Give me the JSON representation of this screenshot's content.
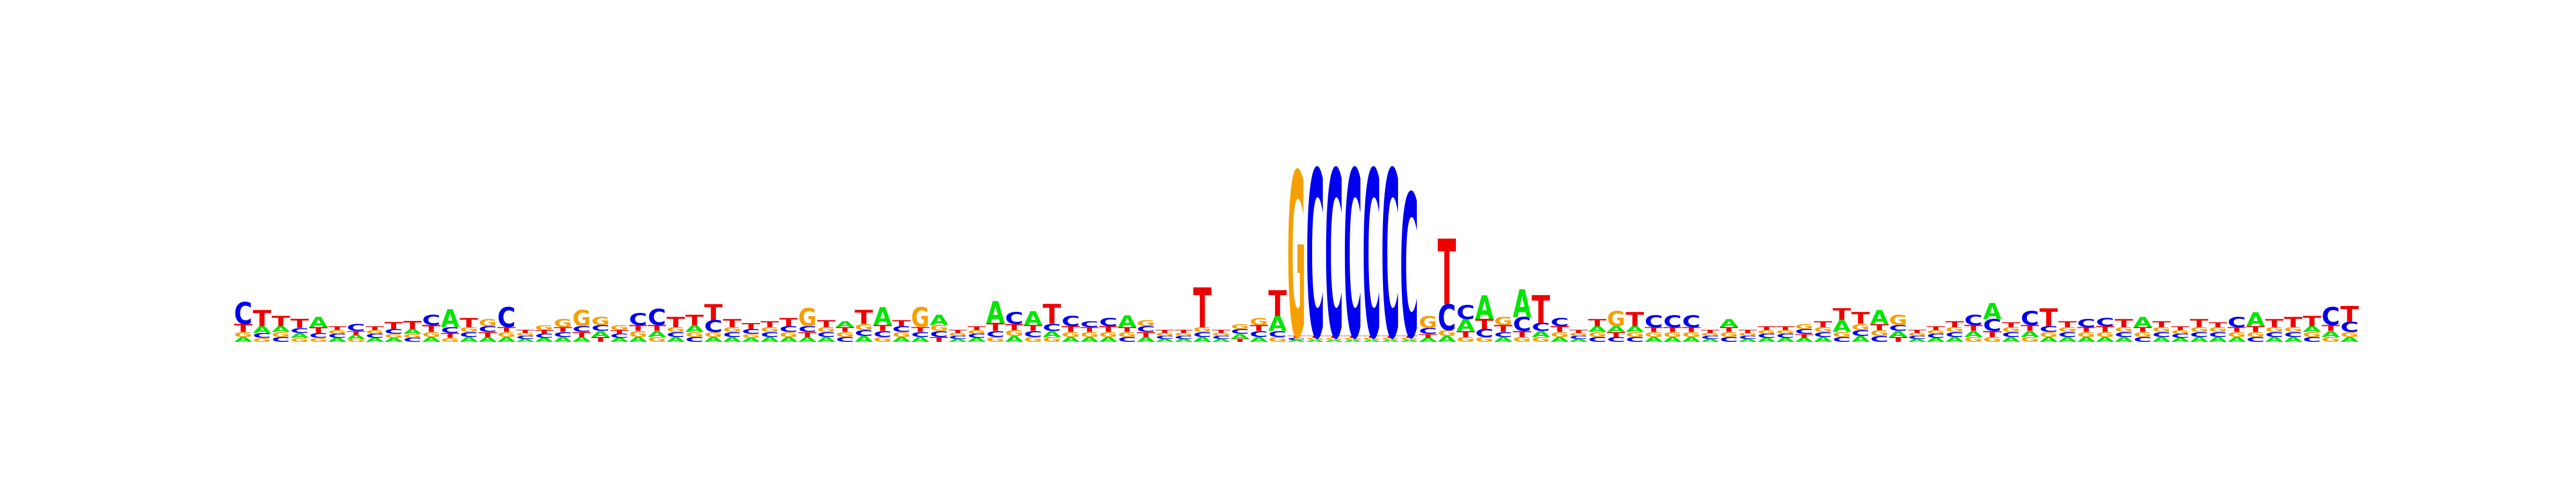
{
  "chart_data": {
    "type": "sequence-logo",
    "alphabet": [
      "A",
      "C",
      "G",
      "T"
    ],
    "colors": {
      "A": "#00e600",
      "C": "#0000ee",
      "G": "#f5a000",
      "T": "#ee0000"
    },
    "ylim": [
      0,
      2
    ],
    "positions": [
      {
        "A": 0.05,
        "C": 0.22,
        "G": 0.05,
        "T": 0.08
      },
      {
        "A": 0.07,
        "C": 0.05,
        "G": 0.04,
        "T": 0.16
      },
      {
        "A": 0.06,
        "C": 0.05,
        "G": 0.05,
        "T": 0.1
      },
      {
        "A": 0.05,
        "C": 0.05,
        "G": 0.04,
        "T": 0.09
      },
      {
        "A": 0.1,
        "C": 0.05,
        "G": 0.04,
        "T": 0.06
      },
      {
        "A": 0.04,
        "C": 0.04,
        "G": 0.04,
        "T": 0.04
      },
      {
        "A": 0.04,
        "C": 0.07,
        "G": 0.03,
        "T": 0.04
      },
      {
        "A": 0.04,
        "C": 0.04,
        "G": 0.04,
        "T": 0.04
      },
      {
        "A": 0.04,
        "C": 0.05,
        "G": 0.04,
        "T": 0.07
      },
      {
        "A": 0.05,
        "C": 0.04,
        "G": 0.04,
        "T": 0.08
      },
      {
        "A": 0.05,
        "C": 0.1,
        "G": 0.05,
        "T": 0.07
      },
      {
        "A": 0.18,
        "C": 0.06,
        "G": 0.04,
        "T": 0.05
      },
      {
        "A": 0.05,
        "C": 0.05,
        "G": 0.05,
        "T": 0.09
      },
      {
        "A": 0.05,
        "C": 0.06,
        "G": 0.07,
        "T": 0.05
      },
      {
        "A": 0.05,
        "C": 0.2,
        "G": 0.05,
        "T": 0.05
      },
      {
        "A": 0.03,
        "C": 0.03,
        "G": 0.03,
        "T": 0.03
      },
      {
        "A": 0.04,
        "C": 0.04,
        "G": 0.05,
        "T": 0.04
      },
      {
        "A": 0.05,
        "C": 0.05,
        "G": 0.08,
        "T": 0.05
      },
      {
        "A": 0.05,
        "C": 0.06,
        "G": 0.16,
        "T": 0.05
      },
      {
        "A": 0.06,
        "C": 0.06,
        "G": 0.08,
        "T": 0.05
      },
      {
        "A": 0.04,
        "C": 0.04,
        "G": 0.05,
        "T": 0.04
      },
      {
        "A": 0.05,
        "C": 0.12,
        "G": 0.06,
        "T": 0.06
      },
      {
        "A": 0.06,
        "C": 0.16,
        "G": 0.05,
        "T": 0.06
      },
      {
        "A": 0.05,
        "C": 0.05,
        "G": 0.05,
        "T": 0.1
      },
      {
        "A": 0.07,
        "C": 0.05,
        "G": 0.05,
        "T": 0.1
      },
      {
        "A": 0.05,
        "C": 0.12,
        "G": 0.05,
        "T": 0.16
      },
      {
        "A": 0.05,
        "C": 0.05,
        "G": 0.05,
        "T": 0.08
      },
      {
        "A": 0.04,
        "C": 0.05,
        "G": 0.04,
        "T": 0.06
      },
      {
        "A": 0.05,
        "C": 0.05,
        "G": 0.05,
        "T": 0.06
      },
      {
        "A": 0.05,
        "C": 0.06,
        "G": 0.05,
        "T": 0.08
      },
      {
        "A": 0.05,
        "C": 0.06,
        "G": 0.18,
        "T": 0.05
      },
      {
        "A": 0.05,
        "C": 0.05,
        "G": 0.05,
        "T": 0.07
      },
      {
        "A": 0.06,
        "C": 0.05,
        "G": 0.05,
        "T": 0.05
      },
      {
        "A": 0.06,
        "C": 0.06,
        "G": 0.06,
        "T": 0.14
      },
      {
        "A": 0.18,
        "C": 0.06,
        "G": 0.05,
        "T": 0.06
      },
      {
        "A": 0.05,
        "C": 0.06,
        "G": 0.05,
        "T": 0.06
      },
      {
        "A": 0.05,
        "C": 0.05,
        "G": 0.2,
        "T": 0.05
      },
      {
        "A": 0.1,
        "C": 0.06,
        "G": 0.06,
        "T": 0.05
      },
      {
        "A": 0.03,
        "C": 0.03,
        "G": 0.03,
        "T": 0.03
      },
      {
        "A": 0.04,
        "C": 0.04,
        "G": 0.04,
        "T": 0.04
      },
      {
        "A": 0.22,
        "C": 0.06,
        "G": 0.05,
        "T": 0.08
      },
      {
        "A": 0.06,
        "C": 0.12,
        "G": 0.06,
        "T": 0.06
      },
      {
        "A": 0.14,
        "C": 0.06,
        "G": 0.05,
        "T": 0.06
      },
      {
        "A": 0.06,
        "C": 0.07,
        "G": 0.05,
        "T": 0.2
      },
      {
        "A": 0.05,
        "C": 0.1,
        "G": 0.05,
        "T": 0.06
      },
      {
        "A": 0.05,
        "C": 0.06,
        "G": 0.05,
        "T": 0.05
      },
      {
        "A": 0.05,
        "C": 0.08,
        "G": 0.05,
        "T": 0.06
      },
      {
        "A": 0.12,
        "C": 0.05,
        "G": 0.05,
        "T": 0.05
      },
      {
        "A": 0.05,
        "C": 0.06,
        "G": 0.06,
        "T": 0.05
      },
      {
        "A": 0.03,
        "C": 0.03,
        "G": 0.03,
        "T": 0.03
      },
      {
        "A": 0.03,
        "C": 0.03,
        "G": 0.03,
        "T": 0.03
      },
      {
        "A": 0.05,
        "C": 0.05,
        "G": 0.05,
        "T": 0.4
      },
      {
        "A": 0.03,
        "C": 0.03,
        "G": 0.03,
        "T": 0.03
      },
      {
        "A": 0.05,
        "C": 0.05,
        "G": 0.05,
        "T": 0.03
      },
      {
        "A": 0.05,
        "C": 0.06,
        "G": 0.07,
        "T": 0.06
      },
      {
        "A": 0.15,
        "C": 0.06,
        "G": 0.05,
        "T": 0.26
      },
      {
        "A": 0.02,
        "C": 0.02,
        "G": 1.66,
        "T": 0.02
      },
      {
        "A": 0.02,
        "C": 1.68,
        "G": 0.02,
        "T": 0.02
      },
      {
        "A": 0.02,
        "C": 1.68,
        "G": 0.02,
        "T": 0.02
      },
      {
        "A": 0.02,
        "C": 1.68,
        "G": 0.02,
        "T": 0.02
      },
      {
        "A": 0.02,
        "C": 1.68,
        "G": 0.02,
        "T": 0.02
      },
      {
        "A": 0.02,
        "C": 1.68,
        "G": 0.02,
        "T": 0.02
      },
      {
        "A": 0.02,
        "C": 1.44,
        "G": 0.02,
        "T": 0.02
      },
      {
        "A": 0.04,
        "C": 0.06,
        "G": 0.12,
        "T": 0.04
      },
      {
        "A": 0.06,
        "C": 0.26,
        "G": 0.06,
        "T": 0.66
      },
      {
        "A": 0.12,
        "C": 0.14,
        "G": 0.05,
        "T": 0.06
      },
      {
        "A": 0.24,
        "C": 0.08,
        "G": 0.05,
        "T": 0.1
      },
      {
        "A": 0.05,
        "C": 0.05,
        "G": 0.08,
        "T": 0.07
      },
      {
        "A": 0.28,
        "C": 0.14,
        "G": 0.05,
        "T": 0.06
      },
      {
        "A": 0.06,
        "C": 0.08,
        "G": 0.05,
        "T": 0.28
      },
      {
        "A": 0.05,
        "C": 0.08,
        "G": 0.05,
        "T": 0.06
      },
      {
        "A": 0.03,
        "C": 0.03,
        "G": 0.03,
        "T": 0.03
      },
      {
        "A": 0.06,
        "C": 0.05,
        "G": 0.05,
        "T": 0.07
      },
      {
        "A": 0.06,
        "C": 0.05,
        "G": 0.15,
        "T": 0.05
      },
      {
        "A": 0.06,
        "C": 0.05,
        "G": 0.05,
        "T": 0.14
      },
      {
        "A": 0.05,
        "C": 0.12,
        "G": 0.05,
        "T": 0.05
      },
      {
        "A": 0.05,
        "C": 0.12,
        "G": 0.05,
        "T": 0.05
      },
      {
        "A": 0.05,
        "C": 0.12,
        "G": 0.05,
        "T": 0.05
      },
      {
        "A": 0.03,
        "C": 0.03,
        "G": 0.03,
        "T": 0.03
      },
      {
        "A": 0.08,
        "C": 0.05,
        "G": 0.05,
        "T": 0.05
      },
      {
        "A": 0.03,
        "C": 0.03,
        "G": 0.03,
        "T": 0.03
      },
      {
        "A": 0.04,
        "C": 0.04,
        "G": 0.04,
        "T": 0.04
      },
      {
        "A": 0.04,
        "C": 0.04,
        "G": 0.04,
        "T": 0.04
      },
      {
        "A": 0.04,
        "C": 0.05,
        "G": 0.05,
        "T": 0.04
      },
      {
        "A": 0.05,
        "C": 0.05,
        "G": 0.05,
        "T": 0.06
      },
      {
        "A": 0.12,
        "C": 0.05,
        "G": 0.05,
        "T": 0.12
      },
      {
        "A": 0.06,
        "C": 0.06,
        "G": 0.06,
        "T": 0.12
      },
      {
        "A": 0.14,
        "C": 0.06,
        "G": 0.06,
        "T": 0.06
      },
      {
        "A": 0.06,
        "C": 0.06,
        "G": 0.1,
        "T": 0.05
      },
      {
        "A": 0.03,
        "C": 0.03,
        "G": 0.03,
        "T": 0.03
      },
      {
        "A": 0.04,
        "C": 0.04,
        "G": 0.04,
        "T": 0.04
      },
      {
        "A": 0.05,
        "C": 0.05,
        "G": 0.05,
        "T": 0.06
      },
      {
        "A": 0.06,
        "C": 0.1,
        "G": 0.05,
        "T": 0.06
      },
      {
        "A": 0.16,
        "C": 0.12,
        "G": 0.05,
        "T": 0.06
      },
      {
        "A": 0.05,
        "C": 0.05,
        "G": 0.05,
        "T": 0.05
      },
      {
        "A": 0.06,
        "C": 0.14,
        "G": 0.05,
        "T": 0.06
      },
      {
        "A": 0.05,
        "C": 0.06,
        "G": 0.05,
        "T": 0.18
      },
      {
        "A": 0.05,
        "C": 0.05,
        "G": 0.05,
        "T": 0.06
      },
      {
        "A": 0.05,
        "C": 0.08,
        "G": 0.05,
        "T": 0.05
      },
      {
        "A": 0.05,
        "C": 0.08,
        "G": 0.05,
        "T": 0.06
      },
      {
        "A": 0.05,
        "C": 0.05,
        "G": 0.05,
        "T": 0.08
      },
      {
        "A": 0.1,
        "C": 0.05,
        "G": 0.05,
        "T": 0.05
      },
      {
        "A": 0.05,
        "C": 0.05,
        "G": 0.05,
        "T": 0.06
      },
      {
        "A": 0.04,
        "C": 0.04,
        "G": 0.04,
        "T": 0.04
      },
      {
        "A": 0.05,
        "C": 0.05,
        "G": 0.05,
        "T": 0.08
      },
      {
        "A": 0.05,
        "C": 0.05,
        "G": 0.05,
        "T": 0.05
      },
      {
        "A": 0.05,
        "C": 0.1,
        "G": 0.05,
        "T": 0.05
      },
      {
        "A": 0.14,
        "C": 0.05,
        "G": 0.05,
        "T": 0.06
      },
      {
        "A": 0.05,
        "C": 0.05,
        "G": 0.05,
        "T": 0.08
      },
      {
        "A": 0.05,
        "C": 0.05,
        "G": 0.05,
        "T": 0.1
      },
      {
        "A": 0.06,
        "C": 0.05,
        "G": 0.05,
        "T": 0.1
      },
      {
        "A": 0.06,
        "C": 0.18,
        "G": 0.05,
        "T": 0.06
      },
      {
        "A": 0.05,
        "C": 0.1,
        "G": 0.05,
        "T": 0.16
      }
    ]
  }
}
